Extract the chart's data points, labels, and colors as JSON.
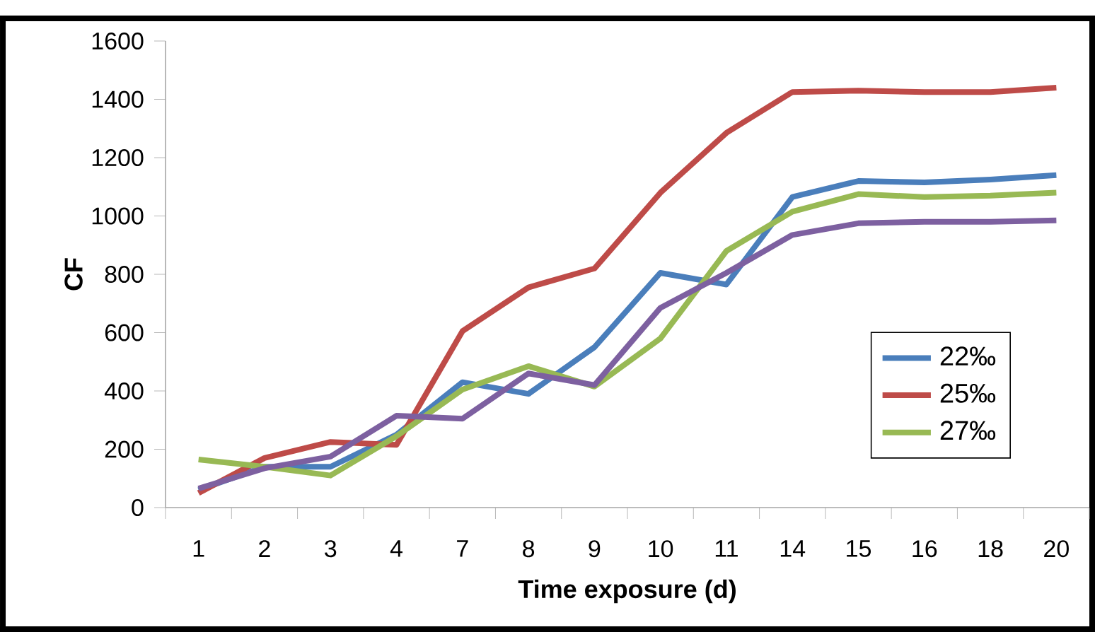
{
  "chart_data": {
    "type": "line",
    "xlabel": "Time exposure (d)",
    "ylabel": "CF",
    "categories": [
      "1",
      "2",
      "3",
      "4",
      "7",
      "8",
      "9",
      "10",
      "11",
      "14",
      "15",
      "16",
      "18",
      "20"
    ],
    "ylim": [
      0,
      1600
    ],
    "yticks": [
      0,
      200,
      400,
      600,
      800,
      1000,
      1200,
      1400,
      1600
    ],
    "grid": false,
    "legend": "bottom right",
    "marker": "none",
    "line_style": "solid",
    "series": [
      {
        "name": "22‰",
        "color": "#4a7ebb",
        "values": [
          60,
          140,
          140,
          250,
          430,
          390,
          550,
          805,
          765,
          1065,
          1120,
          1115,
          1125,
          1140
        ]
      },
      {
        "name": "25‰",
        "color": "#be4b48",
        "values": [
          50,
          170,
          225,
          215,
          605,
          755,
          820,
          1080,
          1285,
          1425,
          1430,
          1425,
          1425,
          1440
        ]
      },
      {
        "name": "27‰",
        "color": "#98b954",
        "values": [
          165,
          140,
          110,
          245,
          405,
          485,
          415,
          580,
          880,
          1015,
          1075,
          1065,
          1070,
          1080
        ]
      },
      {
        "color": "#7d60a0",
        "values": [
          65,
          135,
          175,
          315,
          305,
          460,
          420,
          685,
          805,
          935,
          975,
          980,
          980,
          985
        ]
      }
    ]
  }
}
